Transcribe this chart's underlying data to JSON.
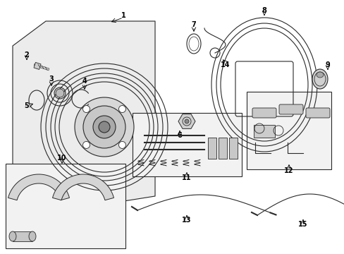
{
  "bg_color": "#ffffff",
  "line_color": "#2a2a2a",
  "box_bg": "#efefef",
  "label_fontsize": 7
}
